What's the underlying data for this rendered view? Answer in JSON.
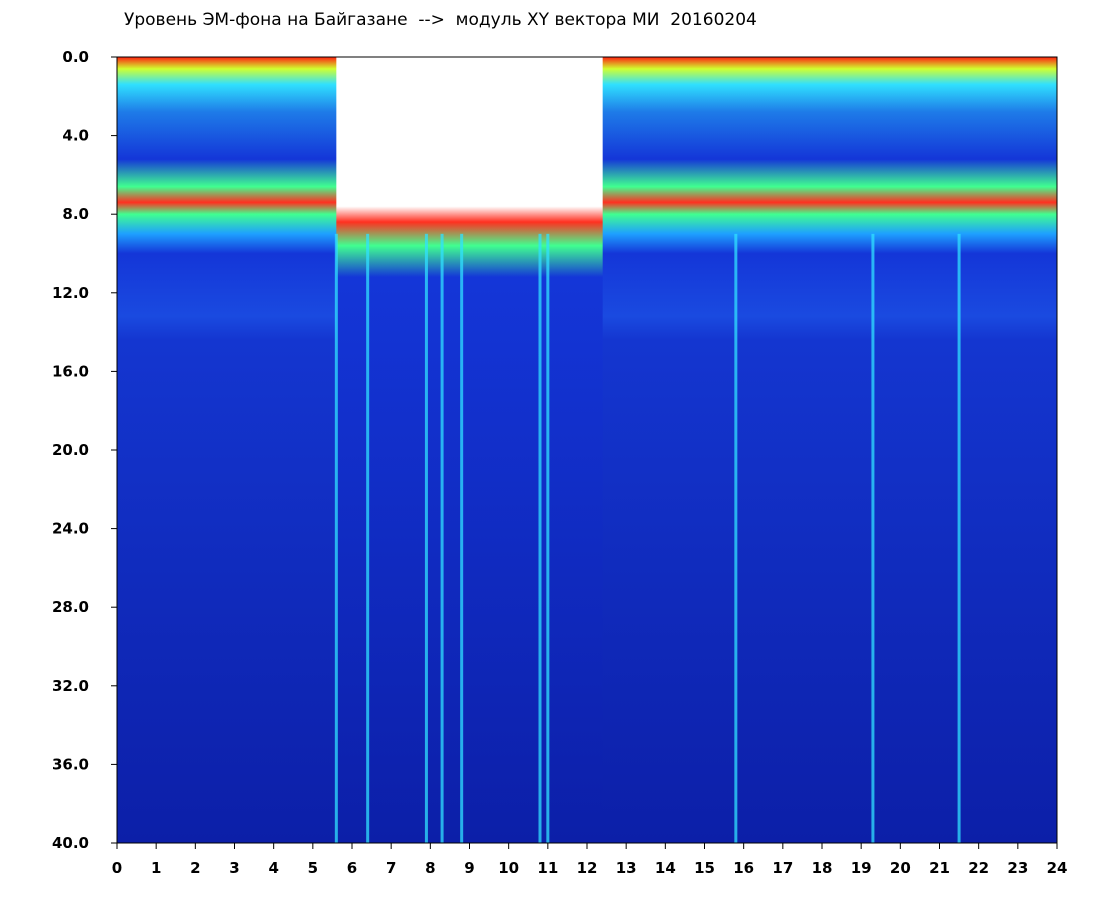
{
  "title": "Уровень ЭМ-фона на Байгазане  -->  модуль XY вектора МИ  20160204",
  "chart_data": {
    "type": "heatmap",
    "title": "Уровень ЭМ-фона на Байгазане  -->  модуль XY вектора МИ  20160204",
    "xlabel": "",
    "ylabel": "",
    "x_ticks": [
      "0",
      "1",
      "2",
      "3",
      "4",
      "5",
      "6",
      "7",
      "8",
      "9",
      "10",
      "11",
      "12",
      "13",
      "14",
      "15",
      "16",
      "17",
      "18",
      "19",
      "20",
      "21",
      "22",
      "23",
      "24"
    ],
    "y_ticks": [
      "0.0",
      "4.0",
      "8.0",
      "12.0",
      "16.0",
      "20.0",
      "24.0",
      "28.0",
      "32.0",
      "36.0",
      "40.0"
    ],
    "xlim": [
      0,
      24
    ],
    "ylim": [
      0,
      40
    ],
    "y_inverted": true,
    "colormap": [
      "#0a1a9a",
      "#1436d8",
      "#1ea0ff",
      "#30e0ff",
      "#40ff90",
      "#d0ff30",
      "#ff2010"
    ],
    "background_color": "#0a1fa8",
    "band_features": [
      {
        "name": "upper band top edge",
        "y": 1.0
      },
      {
        "name": "bright band",
        "y": 7.5
      },
      {
        "name": "band lower edge",
        "y": 9.0
      },
      {
        "name": "faint band",
        "y": 14.0
      }
    ],
    "gaps": [
      {
        "x_start": 5.6,
        "x_end": 12.4,
        "top_y": 1.5
      },
      {
        "x_start": 19.3,
        "x_end": 19.4,
        "top_y": 0.0
      }
    ],
    "vertical_streaks": [
      5.6,
      6.4,
      7.9,
      8.3,
      8.8,
      10.8,
      11.0,
      15.8,
      19.3,
      21.5
    ]
  }
}
